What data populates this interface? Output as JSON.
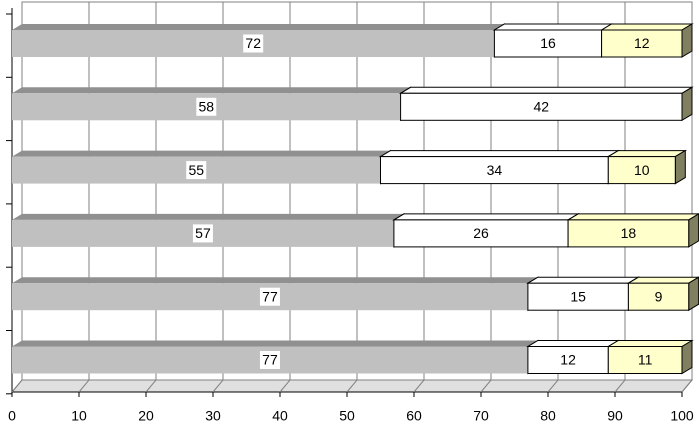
{
  "chart_data": {
    "type": "stacked-bar-3d",
    "orientation": "horizontal",
    "categories": [
      null,
      null,
      null,
      null,
      null,
      null
    ],
    "series": [
      {
        "color": "#c0c0c0",
        "values": [
          72,
          58,
          55,
          57,
          77,
          77
        ]
      },
      {
        "color": "#ffffff",
        "values": [
          16,
          42,
          34,
          26,
          15,
          12
        ]
      },
      {
        "color": "#ffffcc",
        "values": [
          12,
          null,
          10,
          18,
          9,
          11
        ]
      }
    ],
    "xlim": [
      0,
      100
    ],
    "xticks": [
      0,
      10,
      20,
      30,
      40,
      50,
      60,
      70,
      80,
      90,
      100
    ],
    "grid": true
  }
}
